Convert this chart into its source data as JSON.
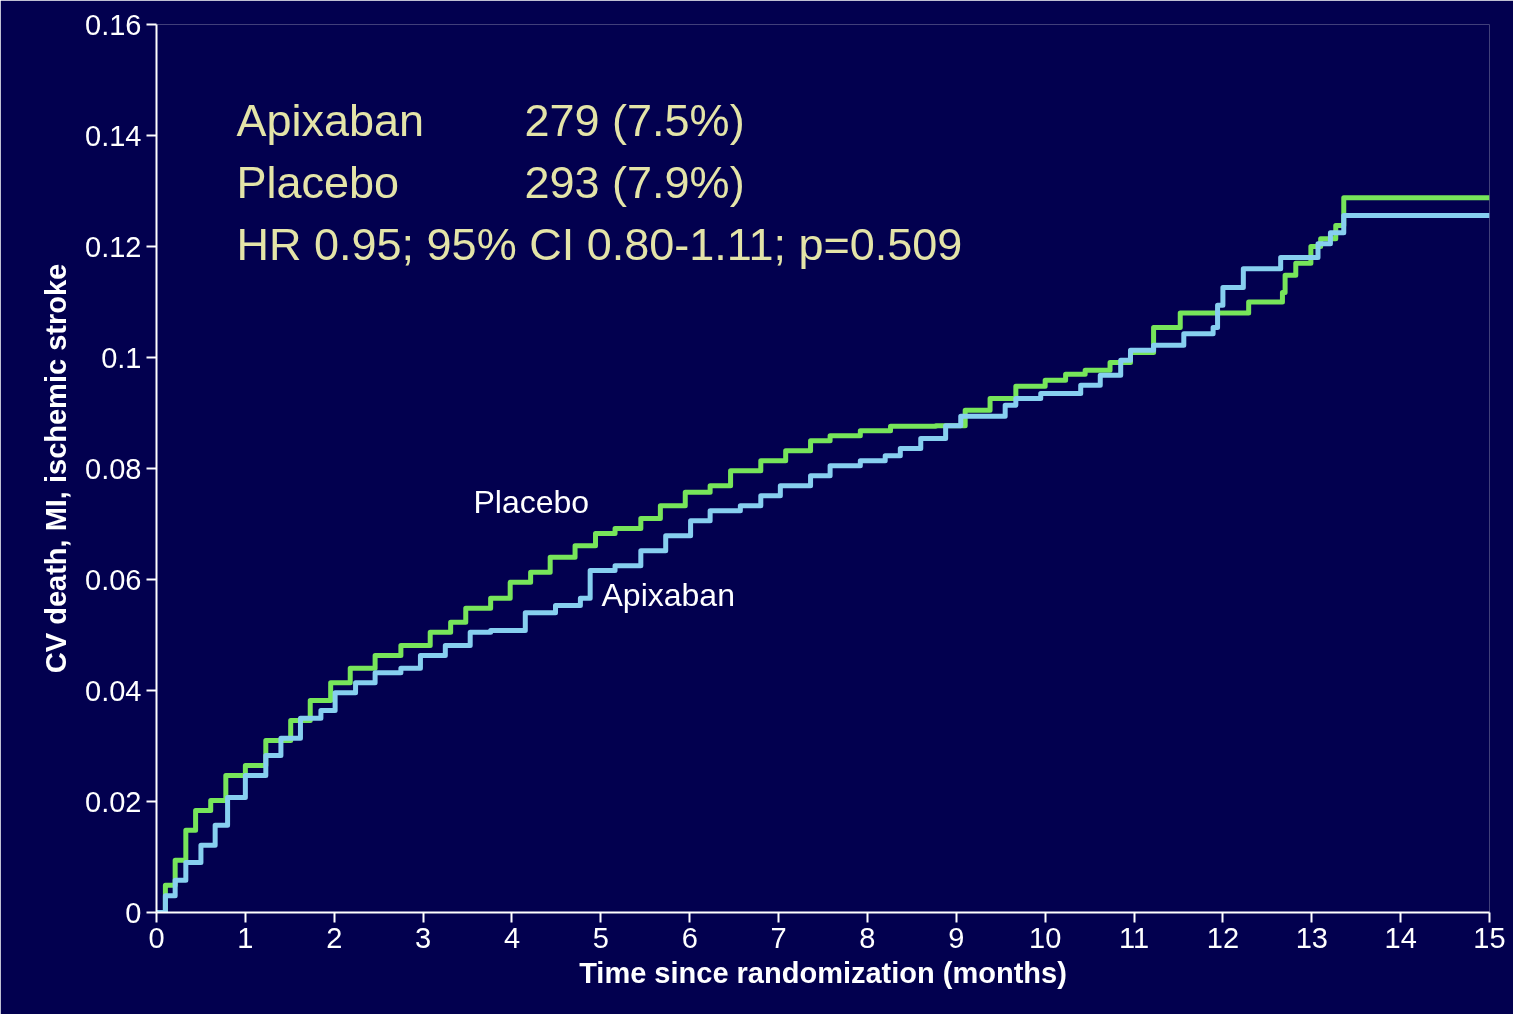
{
  "chart_data": {
    "type": "step",
    "xlabel": "Time since randomization (months)",
    "ylabel": "CV death, MI, ischemic stroke",
    "xlim": [
      0,
      15
    ],
    "ylim": [
      0,
      0.16
    ],
    "xticks": [
      0,
      1,
      2,
      3,
      4,
      5,
      6,
      7,
      8,
      9,
      10,
      11,
      12,
      13,
      14,
      15
    ],
    "yticks": [
      0,
      0.02,
      0.04,
      0.06,
      0.08,
      0.1,
      0.12,
      0.14,
      0.16
    ],
    "grid": false,
    "legend": false,
    "marker": "none",
    "line_style": "solid",
    "annotations": [
      "Apixaban",
      "279 (7.5%)",
      "Placebo",
      "293 (7.9%)",
      "HR 0.95; 95% CI 0.80-1.11; p=0.509"
    ],
    "series": [
      {
        "name": "Placebo",
        "color": "#77e55a",
        "x": [
          0,
          0.1,
          0.21,
          0.33,
          0.44,
          0.61,
          0.78,
          1.0,
          1.23,
          1.51,
          1.73,
          1.96,
          2.18,
          2.46,
          2.75,
          3.08,
          3.31,
          3.48,
          3.76,
          3.98,
          4.21,
          4.43,
          4.71,
          4.94,
          5.16,
          5.45,
          5.67,
          5.95,
          6.23,
          6.46,
          6.8,
          7.08,
          7.36,
          7.58,
          7.92,
          8.26,
          8.77,
          9.1,
          9.38,
          9.67,
          10.0,
          10.23,
          10.45,
          10.73,
          10.96,
          11.22,
          11.52,
          12.29,
          12.67,
          12.7,
          12.82,
          12.99,
          13.1,
          13.27,
          13.36,
          15
        ],
        "values": [
          0,
          0.0049,
          0.0094,
          0.0148,
          0.0184,
          0.0202,
          0.0247,
          0.0265,
          0.031,
          0.0346,
          0.0382,
          0.0414,
          0.044,
          0.0463,
          0.0481,
          0.0505,
          0.0523,
          0.0548,
          0.0566,
          0.0595,
          0.0613,
          0.064,
          0.0661,
          0.0683,
          0.0692,
          0.071,
          0.0733,
          0.0757,
          0.0769,
          0.0796,
          0.0814,
          0.0832,
          0.085,
          0.0859,
          0.0868,
          0.0876,
          0.0877,
          0.0905,
          0.0926,
          0.0948,
          0.0959,
          0.097,
          0.0977,
          0.0991,
          0.1009,
          0.1054,
          0.108,
          0.11,
          0.1117,
          0.1148,
          0.117,
          0.12,
          0.1214,
          0.1238,
          0.1288,
          0.1288
        ]
      },
      {
        "name": "Apixaban",
        "color": "#87cff0",
        "x": [
          0,
          0.1,
          0.21,
          0.33,
          0.5,
          0.66,
          0.8,
          1.0,
          1.23,
          1.4,
          1.62,
          1.85,
          2.01,
          2.24,
          2.46,
          2.75,
          2.97,
          3.25,
          3.53,
          3.76,
          4.15,
          4.49,
          4.77,
          4.88,
          5.16,
          5.45,
          5.73,
          6.01,
          6.23,
          6.57,
          6.8,
          7.02,
          7.36,
          7.58,
          7.92,
          8.2,
          8.37,
          8.6,
          8.88,
          9.05,
          9.55,
          9.67,
          9.95,
          10.4,
          10.62,
          10.85,
          10.96,
          11.22,
          11.56,
          11.89,
          11.94,
          12.0,
          12.23,
          12.65,
          13.07,
          13.21,
          13.36,
          15
        ],
        "values": [
          0,
          0.003,
          0.0058,
          0.009,
          0.0121,
          0.0157,
          0.0207,
          0.0247,
          0.0283,
          0.0314,
          0.035,
          0.0364,
          0.0396,
          0.0414,
          0.0432,
          0.044,
          0.0463,
          0.0481,
          0.0505,
          0.0508,
          0.054,
          0.0553,
          0.0566,
          0.0616,
          0.0625,
          0.0652,
          0.0679,
          0.0706,
          0.0724,
          0.0733,
          0.0751,
          0.0769,
          0.0787,
          0.0805,
          0.0814,
          0.0823,
          0.0836,
          0.0854,
          0.0877,
          0.0894,
          0.0914,
          0.0926,
          0.0935,
          0.095,
          0.0968,
          0.0995,
          0.1013,
          0.1022,
          0.1043,
          0.1054,
          0.1094,
          0.1126,
          0.116,
          0.118,
          0.1205,
          0.1225,
          0.1256,
          0.1256
        ]
      }
    ]
  }
}
